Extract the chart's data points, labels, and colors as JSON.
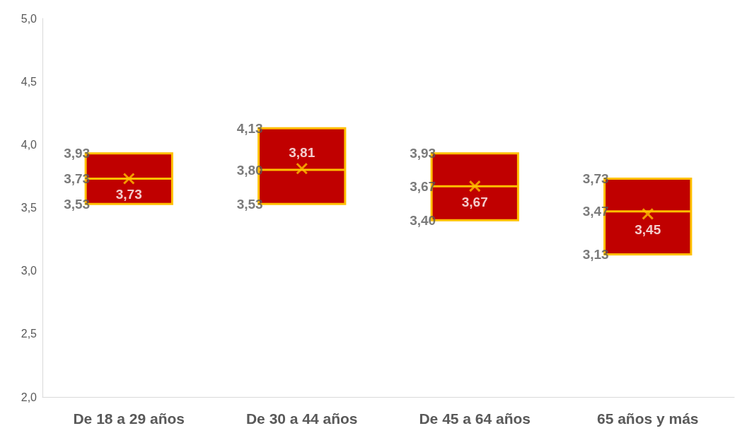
{
  "chart_data": {
    "type": "box",
    "categories": [
      "De 18 a 29 años",
      "De 30 a 44 años",
      "De 45 a 64 años",
      "65 años y más"
    ],
    "series": [
      {
        "color": "#c00000",
        "boxes": [
          {
            "low": 3.53,
            "q1": 3.53,
            "median": 3.73,
            "q3": 3.93,
            "high": 3.93,
            "mean": 3.73
          },
          {
            "low": 3.53,
            "q1": 3.53,
            "median": 3.8,
            "q3": 4.13,
            "high": 4.13,
            "mean": 3.81
          },
          {
            "low": 3.4,
            "q1": 3.4,
            "median": 3.67,
            "q3": 3.93,
            "high": 3.93,
            "mean": 3.67
          },
          {
            "low": 3.13,
            "q1": 3.13,
            "median": 3.47,
            "q3": 3.73,
            "high": 3.73,
            "mean": 3.45
          }
        ]
      }
    ],
    "ylim": [
      2,
      5
    ],
    "yticks": [
      {
        "value": 2,
        "label": "2,0"
      },
      {
        "value": 2.5,
        "label": "2,5"
      },
      {
        "value": 3,
        "label": "3,0"
      },
      {
        "value": 3.5,
        "label": "3,5"
      },
      {
        "value": 4,
        "label": "4,0"
      },
      {
        "value": 4.5,
        "label": "4,5"
      },
      {
        "value": 5,
        "label": "5,0"
      }
    ],
    "annotations": [
      {
        "text": "3,93",
        "x": "De 18 a 29 años",
        "y": 3.93
      },
      {
        "text": "3,73",
        "x": "De 18 a 29 años",
        "y": 3.73
      },
      {
        "text": "3,53",
        "x": "De 18 a 29 años",
        "y": 3.53
      },
      {
        "text": "3,73",
        "x": "De 18 a 29 años",
        "y": 3.73
      },
      {
        "text": "4,13",
        "x": "De 30 a 44 años",
        "y": 4.13
      },
      {
        "text": "3,80",
        "x": "De 30 a 44 años",
        "y": 3.8
      },
      {
        "text": "3,53",
        "x": "De 30 a 44 años",
        "y": 3.53
      },
      {
        "text": "3,81",
        "x": "De 30 a 44 años",
        "y": 3.81
      },
      {
        "text": "3,93",
        "x": "De 45 a 64 años",
        "y": 3.93
      },
      {
        "text": "3,67",
        "x": "De 45 a 64 años",
        "y": 3.67
      },
      {
        "text": "3,40",
        "x": "De 45 a 64 años",
        "y": 3.4
      },
      {
        "text": "3,67",
        "x": "De 45 a 64 años",
        "y": 3.67
      },
      {
        "text": "3,73",
        "x": "65 años y más",
        "y": 3.73
      },
      {
        "text": "3,47",
        "x": "65 años y más",
        "y": 3.47
      },
      {
        "text": "3,13",
        "x": "65 años y más",
        "y": 3.13
      },
      {
        "text": "3,45",
        "x": "65 años y más",
        "y": 3.45
      }
    ]
  }
}
